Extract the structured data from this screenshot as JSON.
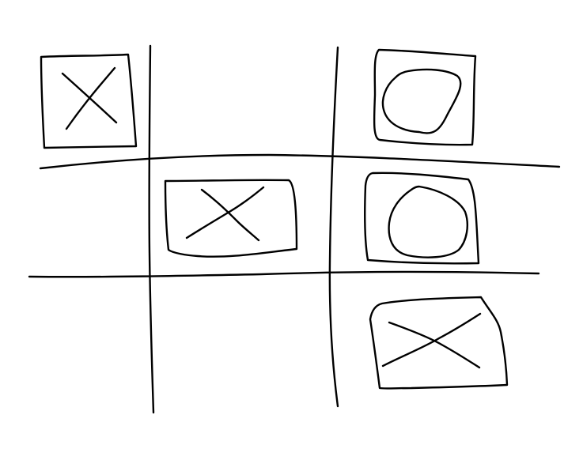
{
  "game": {
    "name": "tic-tac-toe",
    "ink_color": "#000000",
    "background_color": "#ffffff",
    "board": [
      [
        "X",
        "",
        "O"
      ],
      [
        "",
        "X",
        "O"
      ],
      [
        "",
        "",
        "X"
      ]
    ],
    "boxed_marks": [
      {
        "row": 0,
        "col": 0,
        "mark": "X"
      },
      {
        "row": 0,
        "col": 2,
        "mark": "O"
      },
      {
        "row": 1,
        "col": 1,
        "mark": "X"
      },
      {
        "row": 1,
        "col": 2,
        "mark": "O"
      },
      {
        "row": 2,
        "col": 2,
        "mark": "X"
      }
    ]
  }
}
